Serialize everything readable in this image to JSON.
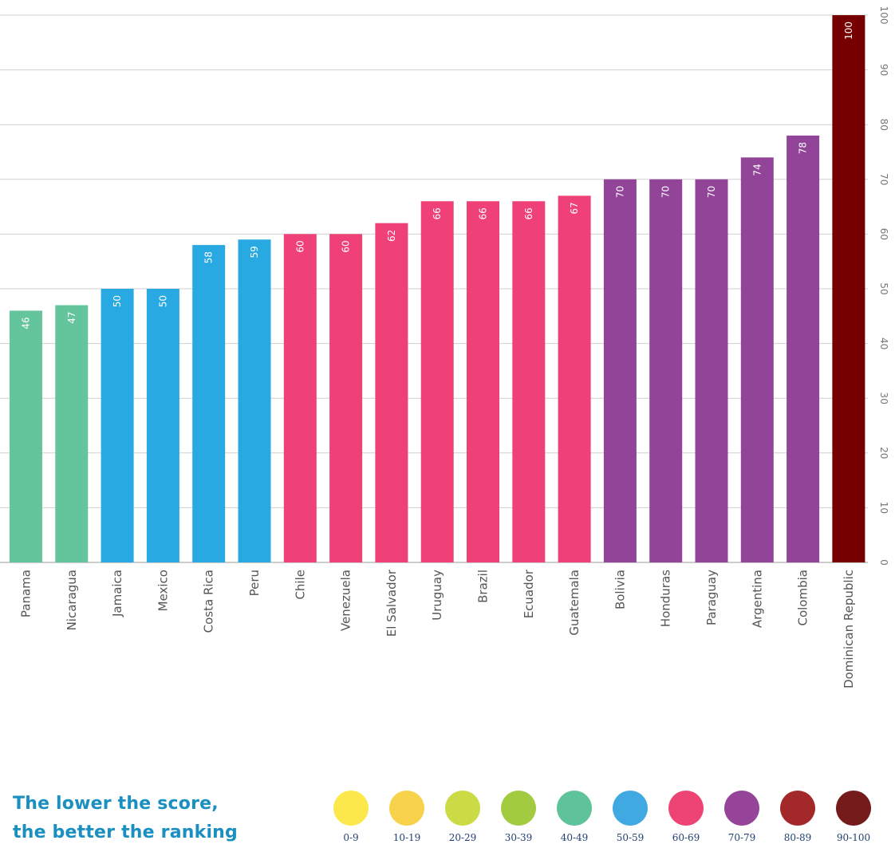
{
  "chart_data": {
    "type": "bar",
    "categories": [
      "Panama",
      "Nicaragua",
      "Jamaica",
      "Mexico",
      "Costa Rica",
      "Peru",
      "Chile",
      "Venezuela",
      "El Salvador",
      "Uruguay",
      "Brazil",
      "Ecuador",
      "Guatemala",
      "Bolivia",
      "Honduras",
      "Paraguay",
      "Argentina",
      "Colombia",
      "Dominican Republic"
    ],
    "values": [
      46,
      47,
      50,
      50,
      58,
      59,
      60,
      60,
      62,
      66,
      66,
      66,
      67,
      70,
      70,
      70,
      74,
      78,
      100
    ],
    "data_labels": [
      "46",
      "47",
      "50",
      "50",
      "58",
      "59",
      "60",
      "60",
      "62",
      "66",
      "66",
      "66",
      "67",
      "70",
      "70",
      "70",
      "74",
      "78",
      "100"
    ],
    "ylim": [
      0,
      100
    ],
    "yticks": [
      "0",
      "10",
      "20",
      "30",
      "40",
      "50",
      "60",
      "70",
      "80",
      "90",
      "100"
    ],
    "y_axis_position": "right",
    "grid": true,
    "color_ranges": [
      "40-49",
      "50-59",
      "60-69",
      "70-79",
      "90-100"
    ]
  },
  "legend": {
    "note_line1": "The lower the score,",
    "note_line2": "the better the ranking",
    "items": [
      {
        "label": "0-9",
        "color": "#fde84b"
      },
      {
        "label": "10-19",
        "color": "#f9d24b"
      },
      {
        "label": "20-29",
        "color": "#cbdb46"
      },
      {
        "label": "30-39",
        "color": "#a2cb40"
      },
      {
        "label": "40-49",
        "color": "#5ec29a"
      },
      {
        "label": "50-59",
        "color": "#41a9e1"
      },
      {
        "label": "60-69",
        "color": "#ee4474"
      },
      {
        "label": "70-79",
        "color": "#96449a"
      },
      {
        "label": "80-89",
        "color": "#a2282a"
      },
      {
        "label": "90-100",
        "color": "#751b1b"
      }
    ]
  },
  "colors": {
    "40-49": "#64c49b",
    "50-59": "#29a9e1",
    "60-69": "#ef4177",
    "70-79": "#924598",
    "90-100": "#760000"
  }
}
